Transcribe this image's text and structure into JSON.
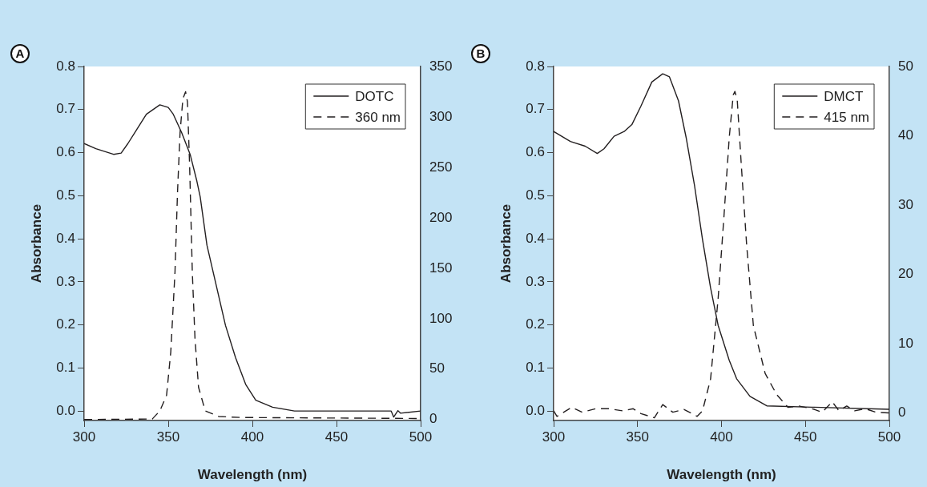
{
  "chart_data": [
    {
      "type": "line",
      "annotations": [
        "A"
      ],
      "xlabel": "Wavelength (nm)",
      "ylabel": "Absorbance",
      "xlim": [
        300,
        500
      ],
      "xticks": [
        300,
        350,
        400,
        450,
        500
      ],
      "ylim": [
        -0.022,
        0.8
      ],
      "yticks": [
        {
          "value": 0,
          "label": "0.0"
        },
        0.1,
        0.2,
        0.3,
        0.4,
        0.5,
        0.6,
        0.7,
        0.8
      ],
      "y2lim": [
        -1,
        350
      ],
      "y2ticks": [
        0,
        50,
        100,
        150,
        200,
        250,
        300,
        350
      ],
      "legend": "top right",
      "grid": false,
      "marker": "none",
      "series": [
        {
          "name": "DOTC",
          "color": "#231f20",
          "line_style": "solid",
          "x": [
            300,
            307,
            317.5,
            322,
            326,
            331,
            337,
            345,
            350,
            353,
            358,
            363,
            367,
            369,
            373,
            378.5,
            384,
            390,
            396,
            402,
            412,
            425,
            456,
            482.5,
            484,
            486.5,
            488,
            500
          ],
          "values": [
            0.621,
            0.609,
            0.596,
            0.599,
            0.621,
            0.652,
            0.689,
            0.711,
            0.705,
            0.689,
            0.646,
            0.596,
            0.534,
            0.497,
            0.385,
            0.292,
            0.199,
            0.124,
            0.062,
            0.025,
            0.009,
            0.0,
            0.0,
            0.0,
            -0.014,
            0.001,
            -0.005,
            0.0
          ]
        },
        {
          "name": "360 nm",
          "color": "#231f20",
          "line_style": "dashed",
          "axis": "y2",
          "x": [
            300,
            340.5,
            345,
            349,
            351.5,
            354,
            355.5,
            357,
            358.7,
            360.3,
            361.4,
            362.7,
            364.3,
            365.9,
            368,
            372,
            380,
            393,
            500
          ],
          "values": [
            0,
            0.5,
            8.5,
            24,
            67,
            146,
            225,
            284,
            318,
            325,
            315,
            252,
            146,
            80,
            32,
            8.5,
            3,
            2,
            1
          ]
        }
      ]
    },
    {
      "type": "line",
      "annotations": [
        "B"
      ],
      "xlabel": "Wavelength (nm)",
      "ylabel": "Absorbance",
      "xlim": [
        300,
        500
      ],
      "xticks": [
        300,
        350,
        400,
        450,
        500
      ],
      "ylim": [
        -0.022,
        0.8
      ],
      "yticks": [
        {
          "value": 0,
          "label": "0.0"
        },
        0.1,
        0.2,
        0.3,
        0.4,
        0.5,
        0.6,
        0.7,
        0.8
      ],
      "y2lim": [
        -1.1,
        50
      ],
      "y2ticks": [
        0,
        10,
        20,
        30,
        40,
        50
      ],
      "legend": "top right",
      "grid": false,
      "marker": "none",
      "series": [
        {
          "name": "DMCT",
          "color": "#231f20",
          "line_style": "solid",
          "x": [
            300,
            310,
            318.8,
            326,
            330,
            336,
            342,
            346.6,
            352,
            358.5,
            365,
            369,
            374.4,
            379,
            384,
            388.7,
            393.5,
            398,
            404.6,
            409,
            417,
            427,
            454,
            500
          ],
          "values": [
            0.649,
            0.626,
            0.615,
            0.598,
            0.609,
            0.638,
            0.649,
            0.665,
            0.708,
            0.764,
            0.783,
            0.776,
            0.72,
            0.634,
            0.522,
            0.398,
            0.286,
            0.199,
            0.118,
            0.075,
            0.034,
            0.012,
            0.009,
            0.004
          ]
        },
        {
          "name": "415 nm",
          "color": "#231f20",
          "line_style": "dashed",
          "axis": "y2",
          "x": [
            300,
            302,
            310.8,
            317,
            325,
            333,
            341,
            347.4,
            352,
            360,
            365,
            371,
            377.6,
            385.5,
            388.7,
            393.5,
            398,
            401.4,
            404.6,
            407,
            408,
            409.4,
            411.8,
            415,
            419,
            426,
            433,
            439.6,
            446,
            454,
            460,
            466,
            470,
            474.6,
            479.4,
            485.7,
            492,
            500
          ],
          "values": [
            0.3,
            -0.5,
            0.8,
            0.1,
            0.6,
            0.6,
            0.3,
            0.6,
            -0.1,
            -0.7,
            1.2,
            0.1,
            0.5,
            -0.5,
            0.3,
            4.9,
            16.5,
            28.1,
            39.7,
            45.9,
            46.4,
            45.1,
            35.8,
            24.2,
            12.6,
            5.7,
            2.6,
            0.8,
            1.0,
            0.6,
            0.1,
            1.6,
            0.3,
            1.0,
            0.3,
            0.6,
            0.1,
            0
          ]
        }
      ]
    }
  ]
}
